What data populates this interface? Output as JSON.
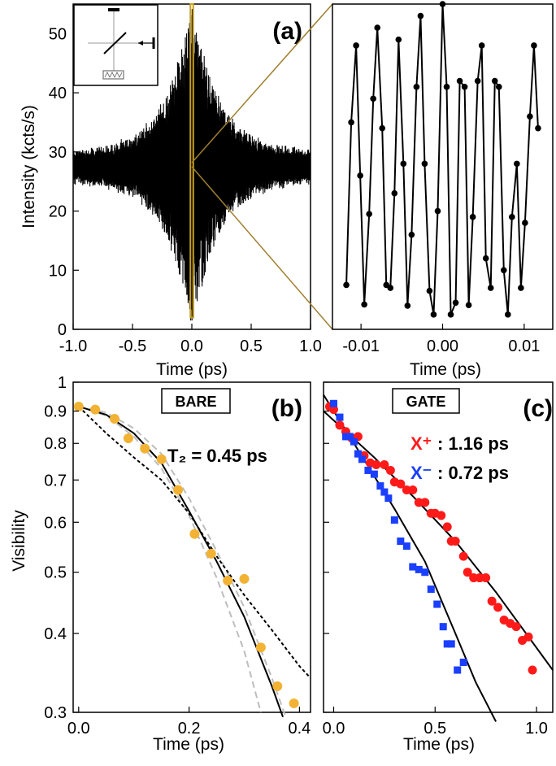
{
  "chart_data": [
    {
      "panel": "(a)",
      "type": "line",
      "xlabel": "Time (ps)",
      "ylabel": "Intensity (kcts/s)",
      "xlim": [
        -1.0,
        1.0
      ],
      "ylim": [
        0,
        55
      ],
      "xticks": [
        "-1.0",
        "-0.5",
        "0.0",
        "0.5",
        "1.0"
      ],
      "yticks": [
        "0",
        "10",
        "20",
        "30",
        "40",
        "50"
      ],
      "envelope": {
        "baseline": 27.5,
        "amplitude": 26,
        "width_ps": 0.22,
        "background_noise": 3
      }
    },
    {
      "panel": "(a) zoom",
      "type": "line",
      "xlabel": "Time (ps)",
      "xlim": [
        -0.0135,
        0.0135
      ],
      "ylim": [
        0,
        55
      ],
      "xticks": [
        "-0.01",
        "0.00",
        "0.01"
      ],
      "x": [
        -0.0118,
        -0.0112,
        -0.0106,
        -0.0101,
        -0.0096,
        -0.009,
        -0.0085,
        -0.008,
        -0.0074,
        -0.0069,
        -0.0064,
        -0.0059,
        -0.0054,
        -0.0048,
        -0.0043,
        -0.0038,
        -0.0032,
        -0.0027,
        -0.0022,
        -0.0016,
        -0.0011,
        -0.0006,
        0.0,
        0.0005,
        0.001,
        0.0016,
        0.0021,
        0.0027,
        0.0032,
        0.0037,
        0.0043,
        0.0048,
        0.0053,
        0.0059,
        0.0064,
        0.0069,
        0.0075,
        0.008,
        0.0085,
        0.0091,
        0.0096,
        0.0101,
        0.0107,
        0.0112,
        0.0117
      ],
      "y": [
        7.5,
        35,
        48,
        26,
        4.2,
        19.5,
        39,
        51,
        34,
        7.5,
        7.0,
        23,
        49,
        28,
        4.0,
        16,
        41,
        53,
        28,
        6.5,
        2.5,
        20,
        55,
        41,
        2.5,
        4.5,
        42,
        41,
        4.1,
        19,
        42,
        48,
        12,
        7.0,
        42,
        41,
        10,
        2.5,
        19,
        28,
        7.0,
        18,
        36,
        48,
        34
      ]
    },
    {
      "panel": "(b)",
      "type": "scatter",
      "box_label": "BARE",
      "annotation": "T₂ = 0.45 ps",
      "xlabel": "Time (ps)",
      "ylabel": "Visibility",
      "xlim": [
        -0.01,
        0.42
      ],
      "ylim": [
        0.3,
        1.0
      ],
      "yscale": "log",
      "xticks": [
        "0.0",
        "0.2",
        "0.4"
      ],
      "yticks": [
        "1",
        "0.9",
        "0.8",
        "0.7",
        "0.6",
        "0.5",
        "0.4",
        "0.3"
      ],
      "points": {
        "color": "#f2b233",
        "x": [
          0.0,
          0.03,
          0.065,
          0.09,
          0.12,
          0.15,
          0.18,
          0.21,
          0.24,
          0.27,
          0.3,
          0.33,
          0.36,
          0.39
        ],
        "y": [
          0.915,
          0.905,
          0.875,
          0.815,
          0.785,
          0.755,
          0.675,
          0.575,
          0.535,
          0.485,
          0.488,
          0.38,
          0.33,
          0.31
        ]
      },
      "fit_solid": {
        "x": [
          0.0,
          0.05,
          0.1,
          0.15,
          0.2,
          0.25,
          0.3,
          0.35,
          0.37
        ],
        "y": [
          0.915,
          0.888,
          0.83,
          0.745,
          0.625,
          0.52,
          0.425,
          0.33,
          0.295
        ]
      },
      "fit_dotted": {
        "x": [
          0.0,
          0.05,
          0.1,
          0.15,
          0.2,
          0.25,
          0.3,
          0.35,
          0.4,
          0.42
        ],
        "y": [
          0.915,
          0.83,
          0.76,
          0.7,
          0.62,
          0.53,
          0.46,
          0.405,
          0.355,
          0.34
        ]
      },
      "fit_dashed_upper": {
        "x": [
          0.0,
          0.05,
          0.1,
          0.15,
          0.2,
          0.25,
          0.3,
          0.35,
          0.375
        ],
        "y": [
          0.915,
          0.895,
          0.845,
          0.77,
          0.655,
          0.54,
          0.44,
          0.34,
          0.295
        ]
      },
      "fit_dashed_lower": {
        "x": [
          0.0,
          0.05,
          0.1,
          0.15,
          0.2,
          0.25,
          0.3,
          0.33
        ],
        "y": [
          0.915,
          0.885,
          0.82,
          0.73,
          0.615,
          0.49,
          0.375,
          0.3
        ]
      }
    },
    {
      "panel": "(c)",
      "type": "scatter",
      "box_label": "GATE",
      "xlabel": "Time (ps)",
      "xlim": [
        -0.05,
        1.08
      ],
      "ylim": [
        0.3,
        1.0
      ],
      "yscale": "log",
      "xticks": [
        "0.0",
        "0.5",
        "1.0"
      ],
      "legend": [
        {
          "symbol": "X⁺",
          "value": ": 1.16 ps",
          "color": "#ff1a1a"
        },
        {
          "symbol": "X⁻",
          "value": ": 0.72 ps",
          "color": "#1a3fff"
        }
      ],
      "series": [
        {
          "color": "#ff1a1a",
          "x": [
            -0.02,
            0.0,
            0.03,
            0.06,
            0.09,
            0.12,
            0.15,
            0.18,
            0.21,
            0.25,
            0.28,
            0.3,
            0.33,
            0.36,
            0.39,
            0.42,
            0.45,
            0.48,
            0.5,
            0.53,
            0.56,
            0.58,
            0.6,
            0.64,
            0.66,
            0.69,
            0.72,
            0.75,
            0.78,
            0.81,
            0.84,
            0.87,
            0.9,
            0.93,
            0.96,
            0.98
          ],
          "y": [
            0.915,
            0.905,
            0.855,
            0.835,
            0.815,
            0.82,
            0.765,
            0.745,
            0.74,
            0.74,
            0.725,
            0.695,
            0.69,
            0.675,
            0.675,
            0.645,
            0.645,
            0.62,
            0.62,
            0.615,
            0.59,
            0.56,
            0.56,
            0.53,
            0.5,
            0.49,
            0.49,
            0.49,
            0.45,
            0.44,
            0.42,
            0.415,
            0.41,
            0.39,
            0.395,
            0.35
          ]
        },
        {
          "color": "#1a3fff",
          "x": [
            0.0,
            0.03,
            0.06,
            0.08,
            0.1,
            0.12,
            0.14,
            0.17,
            0.2,
            0.23,
            0.25,
            0.27,
            0.3,
            0.33,
            0.36,
            0.39,
            0.42,
            0.45,
            0.48,
            0.51,
            0.54,
            0.56,
            0.58,
            0.61,
            0.64
          ],
          "y": [
            0.925,
            0.88,
            0.82,
            0.82,
            0.805,
            0.77,
            0.755,
            0.725,
            0.715,
            0.685,
            0.67,
            0.655,
            0.605,
            0.56,
            0.55,
            0.51,
            0.505,
            0.5,
            0.47,
            0.445,
            0.41,
            0.385,
            0.385,
            0.35,
            0.36
          ]
        }
      ],
      "fit_red": {
        "x": [
          -0.05,
          0.2,
          0.4,
          0.6,
          0.8,
          1.08
        ],
        "y": [
          0.9,
          0.76,
          0.655,
          0.56,
          0.465,
          0.35
        ]
      },
      "fit_blue": {
        "x": [
          -0.05,
          0.1,
          0.3,
          0.45,
          0.6,
          0.7,
          0.8
        ],
        "y": [
          0.955,
          0.8,
          0.63,
          0.52,
          0.4,
          0.335,
          0.29
        ]
      }
    }
  ]
}
